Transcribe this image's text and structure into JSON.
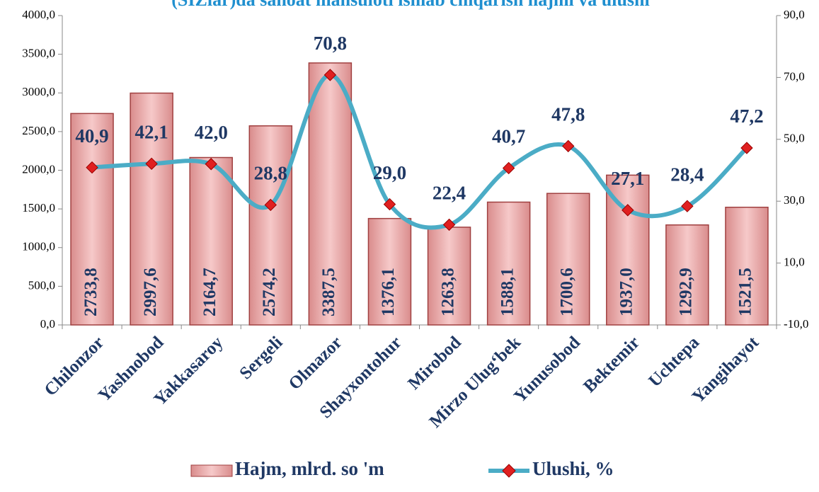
{
  "chart_data": {
    "type": "bar_line",
    "title": "(SIZlar)da sanoat mahsuloti ishlab chiqarish hajmi va ulushi",
    "categories": [
      "Chilonzor",
      "Yashnobod",
      "Yakkasaroy",
      "Sergeli",
      "Olmazor",
      "Shayxontohur",
      "Mirobod",
      "Mirzo Ulug‘bek",
      "Yunusobod",
      "Bektemir",
      "Uchtepa",
      "Yangihayot"
    ],
    "series": [
      {
        "name": "Hajm, mlrd. so 'm",
        "type": "bar",
        "color": "#e6a3a3",
        "axis": "y",
        "values": [
          2733.8,
          2997.6,
          2164.7,
          2574.2,
          3387.5,
          1376.1,
          1263.8,
          1588.1,
          1700.6,
          1937.0,
          1292.9,
          1521.5
        ],
        "value_labels": [
          "2733,8",
          "2997,6",
          "2164,7",
          "2574,2",
          "3387,5",
          "1376,1",
          "1263,8",
          "1588,1",
          "1700,6",
          "1937,0",
          "1292,9",
          "1521,5"
        ]
      },
      {
        "name": "Ulushi, %",
        "type": "line",
        "color": "#4bacc6",
        "marker_color": "#e02020",
        "axis": "y2",
        "values": [
          40.9,
          42.1,
          42.0,
          28.8,
          70.8,
          29.0,
          22.4,
          40.7,
          47.8,
          27.1,
          28.4,
          47.2
        ],
        "value_labels": [
          "40,9",
          "42,1",
          "42,0",
          "28,8",
          "70,8",
          "29,0",
          "22,4",
          "40,7",
          "47,8",
          "27,1",
          "28,4",
          "47,2"
        ]
      }
    ],
    "ylim": [
      0,
      4000
    ],
    "yticks": [
      {
        "value": 0,
        "label": "0,0"
      },
      {
        "value": 500,
        "label": "500,0"
      },
      {
        "value": 1000,
        "label": "1000,0"
      },
      {
        "value": 1500,
        "label": "1500,0"
      },
      {
        "value": 2000,
        "label": "2000,0"
      },
      {
        "value": 2500,
        "label": "2500,0"
      },
      {
        "value": 3000,
        "label": "3000,0"
      },
      {
        "value": 3500,
        "label": "3500,0"
      },
      {
        "value": 4000,
        "label": "4000,0"
      }
    ],
    "y2lim": [
      -10,
      90
    ],
    "y2ticks": [
      {
        "value": -10,
        "label": "-10,0"
      },
      {
        "value": 10,
        "label": "10,0"
      },
      {
        "value": 30,
        "label": "30,0"
      },
      {
        "value": 50,
        "label": "50,0"
      },
      {
        "value": 70,
        "label": "70,0"
      },
      {
        "value": 90,
        "label": "90,0"
      }
    ],
    "grid": false,
    "legend": "bottom"
  }
}
